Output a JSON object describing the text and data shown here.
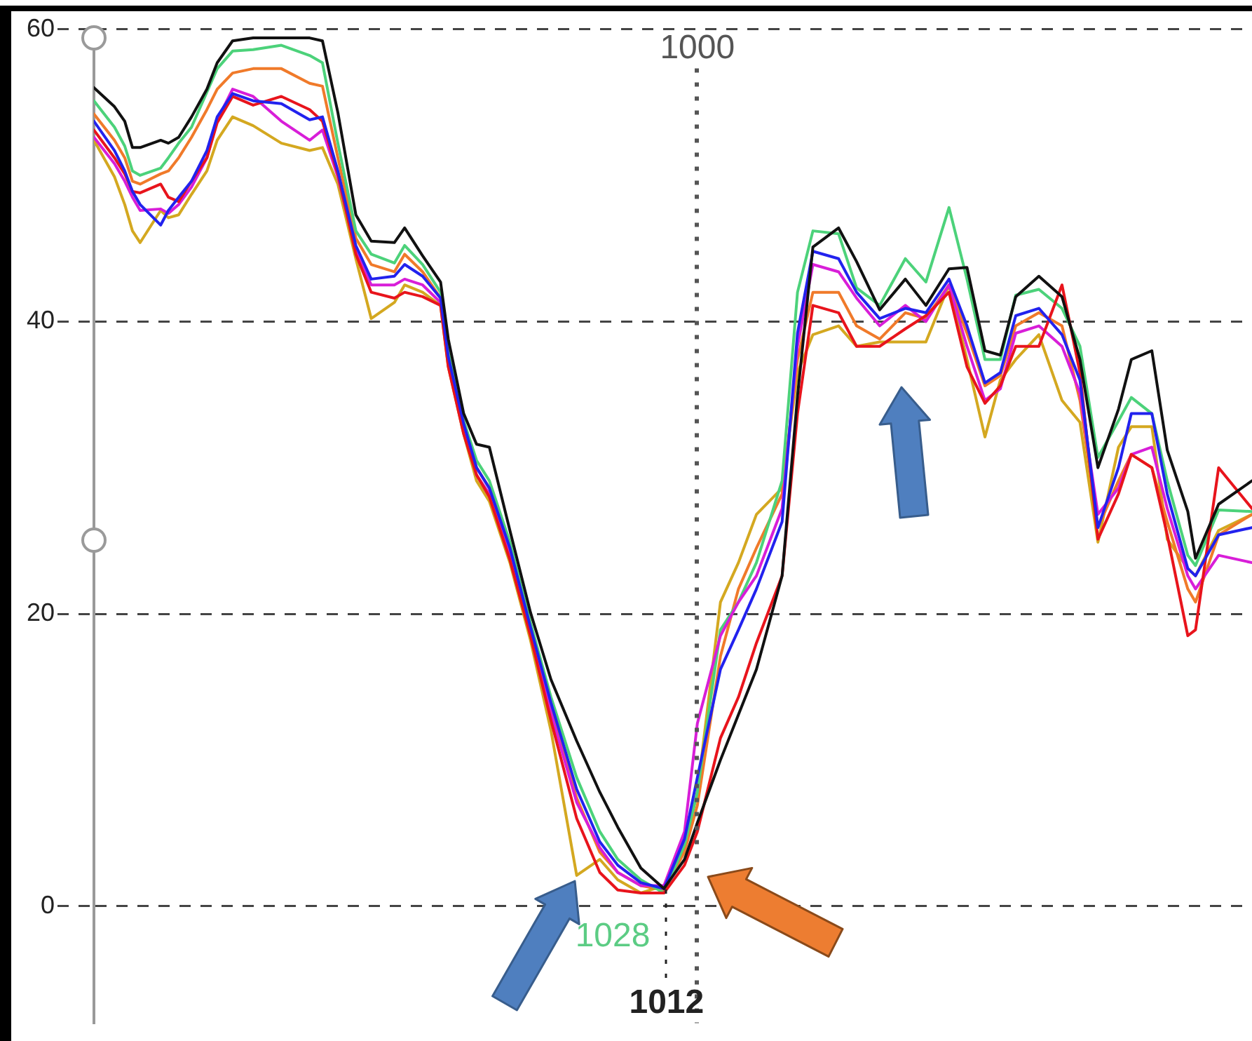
{
  "chart_data": {
    "type": "line",
    "x": [
      1235,
      1227,
      1223,
      1220,
      1217,
      1209,
      1206,
      1202,
      1197,
      1191,
      1187,
      1181,
      1173,
      1162,
      1151,
      1146,
      1140,
      1133,
      1127,
      1118,
      1114,
      1107,
      1100,
      1097,
      1091,
      1086,
      1081,
      1073,
      1065,
      1057,
      1047,
      1038,
      1031,
      1022,
      1013,
      1005,
      1000,
      991,
      984,
      977,
      967,
      961,
      955,
      945,
      938,
      929,
      919,
      911,
      902,
      895,
      888,
      882,
      876,
      867,
      858,
      851,
      844,
      836,
      831,
      823,
      817,
      809,
      806,
      797,
      784
    ],
    "xlim": [
      1235,
      784
    ],
    "ylim": [
      -8,
      60
    ],
    "yticks": [
      0,
      20,
      40,
      60
    ],
    "grid": "y",
    "tick_labels": "y",
    "marker": "none",
    "series": [
      {
        "color": "#111111",
        "values": [
          56.0,
          54.7,
          53.7,
          51.9,
          51.9,
          52.4,
          52.2,
          52.6,
          54.0,
          55.9,
          57.7,
          59.2,
          59.4,
          59.4,
          59.4,
          59.2,
          54.3,
          47.3,
          45.5,
          45.4,
          46.4,
          44.5,
          42.7,
          38.8,
          33.7,
          31.6,
          31.4,
          25.7,
          20.1,
          15.5,
          11.3,
          7.8,
          5.4,
          2.6,
          1.2,
          3.2,
          5.7,
          10.0,
          13.1,
          16.2,
          22.6,
          34.9,
          45.1,
          46.4,
          44.1,
          40.8,
          42.9,
          41.1,
          43.6,
          43.7,
          38.0,
          37.7,
          41.7,
          43.1,
          41.7,
          37.4,
          30.0,
          34.0,
          37.4,
          38.0,
          31.2,
          27.0,
          23.8,
          27.5,
          29.1
        ]
      },
      {
        "color": "#2222ee",
        "values": [
          53.7,
          51.7,
          50.3,
          48.9,
          48.0,
          46.6,
          47.6,
          48.5,
          49.6,
          51.7,
          54.0,
          55.6,
          55.1,
          54.9,
          53.8,
          54.0,
          50.3,
          45.2,
          42.9,
          43.1,
          43.9,
          43.1,
          41.6,
          37.6,
          33.0,
          30.0,
          28.6,
          24.5,
          19.1,
          13.9,
          8.0,
          4.4,
          2.8,
          1.6,
          1.2,
          4.6,
          8.8,
          16.2,
          18.9,
          21.7,
          26.3,
          39.2,
          44.8,
          44.3,
          42.0,
          40.2,
          40.9,
          40.6,
          42.9,
          39.7,
          35.8,
          36.5,
          40.4,
          40.9,
          39.1,
          36.0,
          25.9,
          30.0,
          33.7,
          33.7,
          28.2,
          23.1,
          22.6,
          25.4,
          25.9
        ]
      },
      {
        "color": "#e8141c",
        "values": [
          53.1,
          51.2,
          50.1,
          48.9,
          48.8,
          49.4,
          48.5,
          48.2,
          49.6,
          51.2,
          53.6,
          55.4,
          54.8,
          55.4,
          54.5,
          53.7,
          50.1,
          44.6,
          42.0,
          41.6,
          42.0,
          41.7,
          41.1,
          36.9,
          32.3,
          29.5,
          28.0,
          23.7,
          18.5,
          12.7,
          6.0,
          2.3,
          1.1,
          0.9,
          0.9,
          2.8,
          5.1,
          11.5,
          14.3,
          18.0,
          22.6,
          33.7,
          41.1,
          40.6,
          38.3,
          38.3,
          39.5,
          40.4,
          42.0,
          36.9,
          34.4,
          35.6,
          38.3,
          38.3,
          42.5,
          36.5,
          25.1,
          28.2,
          30.9,
          30.0,
          25.4,
          18.5,
          18.9,
          30.0,
          27.2
        ]
      },
      {
        "color": "#d81ed8",
        "values": [
          52.6,
          50.8,
          49.6,
          48.5,
          47.6,
          47.7,
          47.4,
          48.0,
          49.2,
          51.2,
          53.8,
          55.9,
          55.4,
          53.7,
          52.4,
          53.1,
          49.9,
          44.8,
          42.5,
          42.5,
          42.9,
          42.5,
          41.3,
          37.2,
          32.6,
          29.5,
          28.2,
          24.0,
          18.7,
          13.2,
          7.1,
          4.0,
          2.3,
          1.4,
          1.4,
          5.1,
          12.5,
          18.5,
          20.8,
          22.6,
          27.2,
          38.3,
          43.9,
          43.4,
          41.6,
          39.7,
          41.1,
          40.0,
          42.5,
          38.3,
          34.6,
          35.4,
          39.2,
          39.7,
          38.3,
          35.1,
          26.8,
          28.6,
          30.9,
          31.4,
          27.2,
          22.6,
          21.7,
          24.0,
          23.5
        ]
      },
      {
        "color": "#4cd27a",
        "values": [
          55.1,
          53.3,
          52.0,
          50.3,
          50.0,
          50.5,
          51.2,
          52.2,
          53.3,
          55.7,
          57.3,
          58.5,
          58.6,
          58.9,
          58.2,
          57.7,
          52.2,
          46.2,
          44.6,
          44.0,
          45.2,
          43.9,
          42.0,
          37.9,
          33.2,
          30.5,
          29.1,
          24.9,
          19.4,
          14.3,
          8.8,
          5.1,
          3.2,
          1.8,
          0.9,
          4.2,
          7.8,
          18.9,
          20.8,
          23.5,
          29.1,
          42.0,
          46.2,
          46.0,
          42.3,
          41.1,
          44.3,
          42.7,
          47.8,
          42.9,
          37.4,
          37.4,
          41.8,
          42.2,
          40.9,
          38.3,
          30.7,
          33.2,
          34.8,
          33.7,
          29.1,
          24.0,
          23.3,
          27.1,
          27.0
        ]
      },
      {
        "color": "#f07a2a",
        "values": [
          54.2,
          52.4,
          51.2,
          49.6,
          49.4,
          50.1,
          50.3,
          51.2,
          52.6,
          54.5,
          55.9,
          57.0,
          57.3,
          57.3,
          56.3,
          56.1,
          51.2,
          45.7,
          43.9,
          43.4,
          44.6,
          43.4,
          41.6,
          37.4,
          32.8,
          30.0,
          28.6,
          24.5,
          18.9,
          13.4,
          7.4,
          3.7,
          2.3,
          1.4,
          1.1,
          3.7,
          6.9,
          17.1,
          21.7,
          24.5,
          28.2,
          37.4,
          42.0,
          42.0,
          39.7,
          38.8,
          40.6,
          40.2,
          42.5,
          39.2,
          35.6,
          36.3,
          39.7,
          40.6,
          39.7,
          34.6,
          25.9,
          29.1,
          30.9,
          30.0,
          26.3,
          21.7,
          20.8,
          25.4,
          26.8
        ]
      },
      {
        "color": "#d4a820",
        "values": [
          52.4,
          49.9,
          48.0,
          46.2,
          45.4,
          47.6,
          47.1,
          47.3,
          48.7,
          50.3,
          52.4,
          54.0,
          53.4,
          52.2,
          51.7,
          51.9,
          49.4,
          44.3,
          40.2,
          41.3,
          42.5,
          42.0,
          41.1,
          36.9,
          32.3,
          29.1,
          27.7,
          23.5,
          18.2,
          12.0,
          2.1,
          3.2,
          1.8,
          0.9,
          1.4,
          4.0,
          7.8,
          20.8,
          23.5,
          26.8,
          28.6,
          36.5,
          39.1,
          39.7,
          38.3,
          38.6,
          38.6,
          38.6,
          42.5,
          37.4,
          32.1,
          36.0,
          37.4,
          39.1,
          34.6,
          33.1,
          24.9,
          31.4,
          32.8,
          32.8,
          25.1,
          23.1,
          22.6,
          25.7,
          26.8
        ]
      }
    ],
    "ref_lines": [
      {
        "axis": "x",
        "value": 1000,
        "label": "1000",
        "color": "#555555",
        "line_style": "dotted"
      },
      {
        "axis": "x",
        "value": 1012,
        "label": "1012",
        "color": "#222222",
        "line_style": "dotted"
      }
    ],
    "annotations": [
      "1028"
    ]
  }
}
